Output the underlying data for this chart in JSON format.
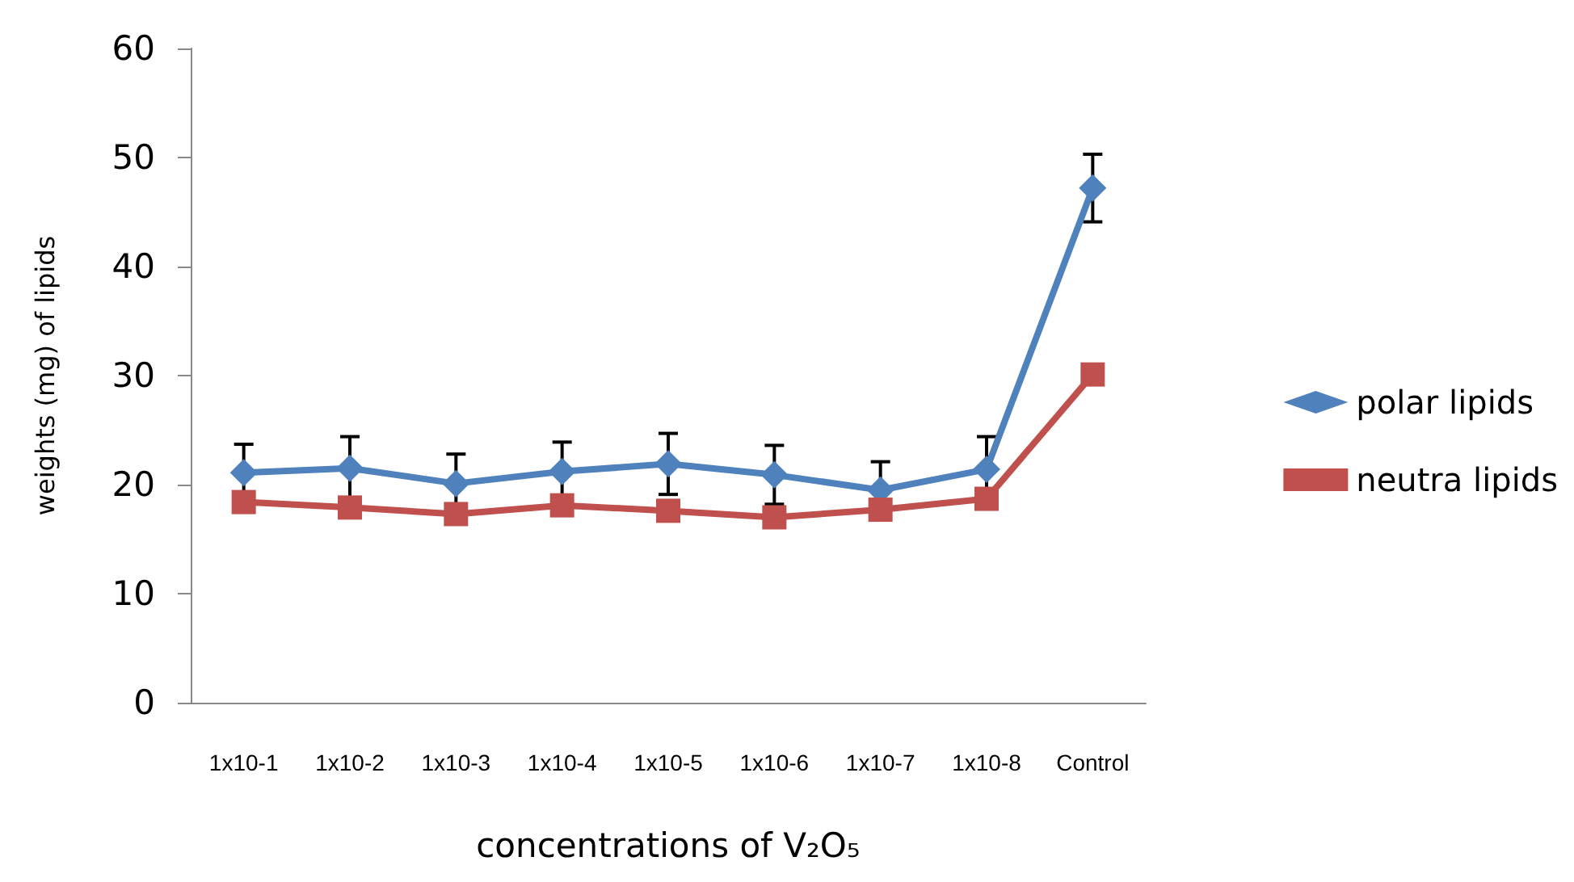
{
  "chart_data": {
    "type": "line",
    "xlabel": "concentrations of V₂O₅",
    "ylabel": "weights (mg) of lipids",
    "categories": [
      "1x10-1",
      "1x10-2",
      "1x10-3",
      "1x10-4",
      "1x10-5",
      "1x10-6",
      "1x10-7",
      "1x10-8",
      "Control"
    ],
    "series": [
      {
        "name": "polar lipids",
        "color": "#4f81bd",
        "marker": "diamond",
        "values": [
          21.1,
          21.5,
          20.1,
          21.2,
          21.9,
          20.9,
          19.5,
          21.4,
          47.2
        ],
        "errors": [
          2.6,
          2.9,
          2.7,
          2.7,
          2.8,
          2.7,
          2.6,
          3.0,
          3.1
        ]
      },
      {
        "name": "neutra lipids",
        "color": "#c0504d",
        "marker": "square",
        "values": [
          18.4,
          17.9,
          17.3,
          18.1,
          17.6,
          17.0,
          17.7,
          18.7,
          30.1
        ]
      }
    ],
    "ylim": [
      0,
      60
    ],
    "yticks": [
      0,
      10,
      20,
      30,
      40,
      50,
      60
    ],
    "grid": false,
    "legend": "right",
    "line_style": "solid"
  }
}
